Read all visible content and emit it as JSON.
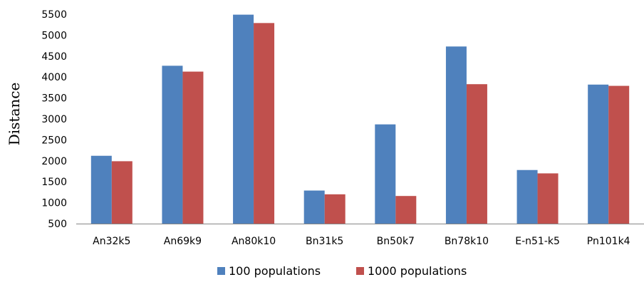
{
  "chart_data": {
    "type": "bar",
    "title": "",
    "xlabel": "",
    "ylabel": "Distance",
    "ylim": [
      500,
      5500
    ],
    "yticks": [
      "500",
      "1000",
      "1500",
      "2000",
      "2500",
      "3000",
      "3500",
      "4000",
      "4500",
      "5000",
      "5500"
    ],
    "categories": [
      "An32k5",
      "An69k9",
      "An80k10",
      "Bn31k5",
      "Bn50k7",
      "Bn78k10",
      "E-n51-k5",
      "Pn101k4"
    ],
    "series": [
      {
        "name": "100 populations",
        "color": "#4f81bd",
        "values": [
          2120,
          4270,
          5490,
          1290,
          2870,
          4730,
          1780,
          3820
        ]
      },
      {
        "name": "1000 populations",
        "color": "#c0504d",
        "values": [
          1990,
          4130,
          5290,
          1200,
          1160,
          3830,
          1700,
          3790
        ]
      }
    ],
    "legend": "bottom",
    "grid": false
  }
}
